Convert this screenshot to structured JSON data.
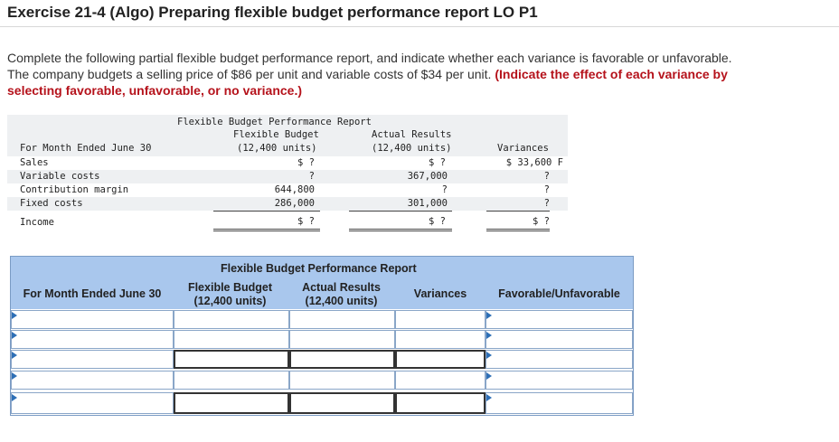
{
  "title": "Exercise 21-4 (Algo) Preparing flexible budget performance report LO P1",
  "instructions": {
    "line1": "Complete the following partial flexible budget performance report, and indicate whether each variance is favorable or unfavorable.",
    "line2_plain": "The company budgets a selling price of $86 per unit and variable costs of $34 per unit.",
    "line2_highlight": "(Indicate the effect of each variance by",
    "line3_highlight": "selecting favorable, unfavorable, or no variance.)"
  },
  "problem_table": {
    "report_title": "Flexible Budget Performance Report",
    "period_label": "For Month Ended June 30",
    "col_flex": [
      "Flexible Budget",
      "(12,400 units)"
    ],
    "col_actual": [
      "Actual Results",
      "(12,400 units)"
    ],
    "col_var": "Variances",
    "rows": [
      {
        "label": "Sales",
        "flex": "$ ?",
        "actual": "$ ?",
        "variance": "$ 33,600 F"
      },
      {
        "label": "Variable costs",
        "flex": "?",
        "actual": "367,000",
        "variance": "?"
      },
      {
        "label": "Contribution margin",
        "flex": "644,800",
        "actual": "?",
        "variance": "?"
      },
      {
        "label": "Fixed costs",
        "flex": "286,000",
        "actual": "301,000",
        "variance": "?"
      },
      {
        "label": "Income",
        "flex": "$ ?",
        "actual": "$ ?",
        "variance": "$ ?"
      }
    ]
  },
  "answer_table": {
    "report_title": "Flexible Budget Performance Report",
    "period_label": "For Month Ended June 30",
    "col_flex": [
      "Flexible Budget",
      "(12,400 units)"
    ],
    "col_actual": [
      "Actual Results",
      "(12,400 units)"
    ],
    "col_var": "Variances",
    "col_fu": "Favorable/Unfavorable",
    "rows": [
      {
        "label": "",
        "flex": "",
        "actual": "",
        "variance": "",
        "fu": ""
      },
      {
        "label": "",
        "flex": "",
        "actual": "",
        "variance": "",
        "fu": ""
      },
      {
        "label": "",
        "flex": "",
        "actual": "",
        "variance": "",
        "fu": ""
      },
      {
        "label": "",
        "flex": "",
        "actual": "",
        "variance": "",
        "fu": ""
      },
      {
        "label": "",
        "flex": "",
        "actual": "",
        "variance": "",
        "fu": ""
      }
    ]
  }
}
